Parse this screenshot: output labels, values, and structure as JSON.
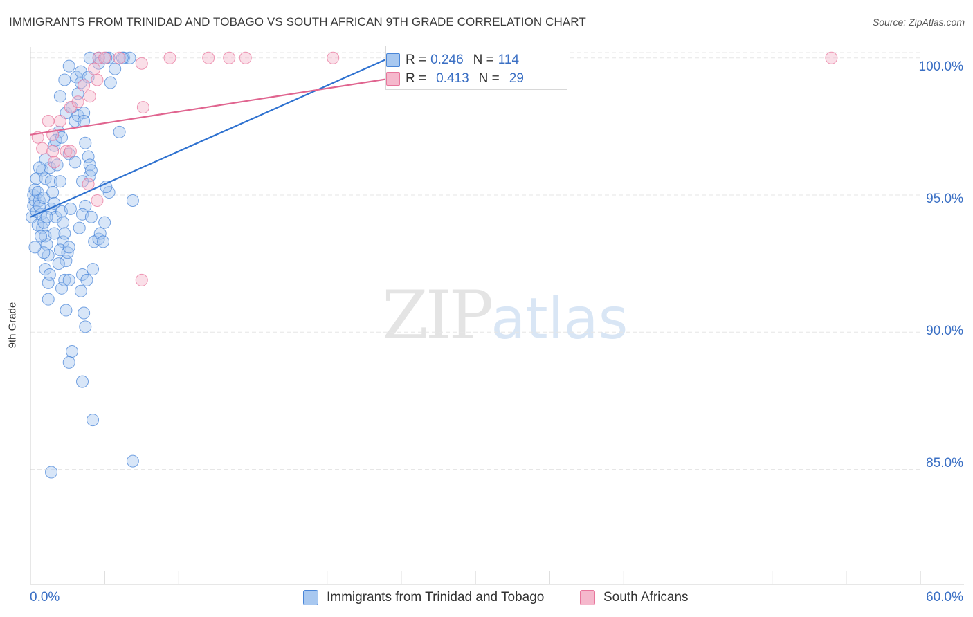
{
  "header": {
    "title": "IMMIGRANTS FROM TRINIDAD AND TOBAGO VS SOUTH AFRICAN 9TH GRADE CORRELATION CHART",
    "source": "Source: ZipAtlas.com"
  },
  "watermark": {
    "zip": "ZIP",
    "atlas": "atlas"
  },
  "stats": [
    {
      "r_label": "R =",
      "r_value": "0.246",
      "n_label": "N =",
      "n_value": "114",
      "color": "#a8c8f0"
    },
    {
      "r_label": "R =",
      "r_value": "0.413",
      "n_label": "N =",
      "n_value": "29",
      "color": "#f5b8cc"
    }
  ],
  "chart_data": {
    "type": "scatter",
    "title": "IMMIGRANTS FROM TRINIDAD AND TOBAGO VS SOUTH AFRICAN 9TH GRADE CORRELATION CHART",
    "xlabel": "",
    "ylabel": "9th Grade",
    "xlim": [
      0,
      60
    ],
    "ylim": [
      80.8,
      100.6
    ],
    "x_tick_labels": {
      "min": "0.0%",
      "max": "60.0%"
    },
    "y_ticks": [
      {
        "value": 85,
        "label": "85.0%"
      },
      {
        "value": 90,
        "label": "90.0%"
      },
      {
        "value": 95,
        "label": "95.0%"
      },
      {
        "value": 100,
        "label": "100.0%"
      }
    ],
    "grid": true,
    "legend_position": "bottom-center",
    "series": [
      {
        "name": "Immigrants from Trinidad and Tobago",
        "color": "#4a86d8",
        "fill": "#a8c8f0",
        "trend": {
          "x": [
            0,
            24.2
          ],
          "y": [
            94.2,
            100.0
          ]
        },
        "points": [
          [
            0.1,
            94.2
          ],
          [
            0.2,
            94.6
          ],
          [
            0.2,
            95.0
          ],
          [
            0.3,
            94.8
          ],
          [
            0.4,
            94.4
          ],
          [
            0.3,
            95.2
          ],
          [
            0.5,
            95.1
          ],
          [
            0.6,
            94.8
          ],
          [
            0.4,
            95.6
          ],
          [
            0.7,
            94.3
          ],
          [
            0.8,
            93.8
          ],
          [
            0.5,
            93.9
          ],
          [
            0.6,
            94.6
          ],
          [
            0.9,
            94.9
          ],
          [
            1.0,
            95.6
          ],
          [
            0.8,
            95.9
          ],
          [
            0.9,
            94.0
          ],
          [
            1.0,
            93.5
          ],
          [
            1.1,
            93.2
          ],
          [
            1.2,
            92.8
          ],
          [
            1.0,
            92.3
          ],
          [
            1.3,
            92.1
          ],
          [
            1.2,
            91.8
          ],
          [
            1.4,
            94.5
          ],
          [
            1.4,
            95.5
          ],
          [
            1.5,
            95.1
          ],
          [
            1.6,
            94.7
          ],
          [
            1.7,
            94.2
          ],
          [
            1.3,
            96.0
          ],
          [
            1.6,
            96.8
          ],
          [
            1.8,
            96.1
          ],
          [
            1.9,
            97.3
          ],
          [
            1.7,
            97.0
          ],
          [
            2.0,
            95.5
          ],
          [
            2.1,
            94.4
          ],
          [
            2.2,
            94.0
          ],
          [
            2.2,
            93.3
          ],
          [
            2.3,
            93.6
          ],
          [
            2.0,
            93.0
          ],
          [
            2.4,
            92.6
          ],
          [
            2.5,
            92.9
          ],
          [
            2.6,
            93.1
          ],
          [
            2.1,
            91.6
          ],
          [
            2.3,
            91.9
          ],
          [
            2.6,
            91.9
          ],
          [
            2.4,
            90.8
          ],
          [
            1.2,
            91.2
          ],
          [
            2.7,
            94.5
          ],
          [
            2.6,
            96.5
          ],
          [
            3.0,
            96.2
          ],
          [
            3.0,
            97.7
          ],
          [
            3.2,
            97.9
          ],
          [
            2.4,
            98.0
          ],
          [
            2.8,
            98.2
          ],
          [
            2.3,
            99.2
          ],
          [
            3.1,
            99.3
          ],
          [
            3.4,
            99.1
          ],
          [
            3.2,
            98.7
          ],
          [
            3.6,
            98.0
          ],
          [
            3.6,
            97.7
          ],
          [
            3.7,
            96.9
          ],
          [
            3.9,
            96.4
          ],
          [
            4.0,
            96.1
          ],
          [
            4.0,
            95.7
          ],
          [
            4.1,
            95.9
          ],
          [
            3.5,
            95.5
          ],
          [
            3.7,
            94.6
          ],
          [
            3.5,
            94.3
          ],
          [
            3.3,
            93.8
          ],
          [
            4.1,
            94.2
          ],
          [
            4.3,
            93.3
          ],
          [
            4.6,
            93.4
          ],
          [
            4.7,
            93.6
          ],
          [
            4.9,
            93.3
          ],
          [
            4.2,
            92.3
          ],
          [
            3.5,
            92.1
          ],
          [
            3.4,
            91.5
          ],
          [
            3.8,
            91.9
          ],
          [
            3.6,
            90.7
          ],
          [
            3.7,
            90.2
          ],
          [
            2.8,
            89.3
          ],
          [
            2.6,
            88.9
          ],
          [
            3.5,
            88.2
          ],
          [
            4.2,
            86.8
          ],
          [
            1.4,
            84.9
          ],
          [
            6.9,
            85.3
          ],
          [
            6.9,
            94.8
          ],
          [
            5.3,
            95.1
          ],
          [
            5.1,
            95.3
          ],
          [
            5.0,
            94.0
          ],
          [
            5.4,
            99.1
          ],
          [
            5.7,
            99.6
          ],
          [
            6.0,
            97.3
          ],
          [
            6.3,
            100.0
          ],
          [
            6.7,
            100.0
          ],
          [
            5.3,
            100.0
          ],
          [
            4.6,
            100.0
          ],
          [
            3.4,
            99.5
          ],
          [
            2.6,
            99.7
          ],
          [
            3.9,
            99.3
          ],
          [
            4.6,
            99.8
          ],
          [
            4.0,
            100.0
          ],
          [
            5.1,
            100.0
          ],
          [
            6.2,
            100.0
          ],
          [
            2.0,
            98.6
          ],
          [
            2.1,
            97.1
          ],
          [
            1.0,
            96.3
          ],
          [
            0.6,
            96.0
          ],
          [
            0.9,
            92.9
          ],
          [
            0.7,
            93.5
          ],
          [
            1.6,
            93.6
          ],
          [
            1.9,
            92.5
          ],
          [
            1.1,
            94.2
          ],
          [
            0.3,
            93.1
          ]
        ]
      },
      {
        "name": "South Africans",
        "color": "#e8769c",
        "fill": "#f5b8cc",
        "trend": {
          "x": [
            0,
            34.3
          ],
          "y": [
            97.2,
            100.1
          ]
        },
        "points": [
          [
            0.5,
            97.1
          ],
          [
            0.8,
            96.7
          ],
          [
            1.2,
            97.7
          ],
          [
            1.5,
            97.2
          ],
          [
            1.5,
            96.6
          ],
          [
            2.0,
            97.7
          ],
          [
            2.4,
            96.6
          ],
          [
            2.7,
            96.6
          ],
          [
            2.7,
            98.2
          ],
          [
            3.2,
            98.4
          ],
          [
            4.0,
            98.6
          ],
          [
            3.6,
            99.0
          ],
          [
            4.5,
            99.2
          ],
          [
            4.3,
            99.6
          ],
          [
            4.6,
            100.0
          ],
          [
            5.0,
            100.0
          ],
          [
            6.0,
            100.0
          ],
          [
            7.5,
            99.8
          ],
          [
            7.6,
            98.2
          ],
          [
            9.4,
            100.0
          ],
          [
            12.0,
            100.0
          ],
          [
            13.4,
            100.0
          ],
          [
            14.5,
            100.0
          ],
          [
            20.4,
            100.0
          ],
          [
            54.0,
            100.0
          ],
          [
            3.9,
            95.4
          ],
          [
            4.5,
            94.8
          ],
          [
            7.5,
            91.9
          ],
          [
            1.6,
            96.2
          ]
        ]
      }
    ]
  }
}
